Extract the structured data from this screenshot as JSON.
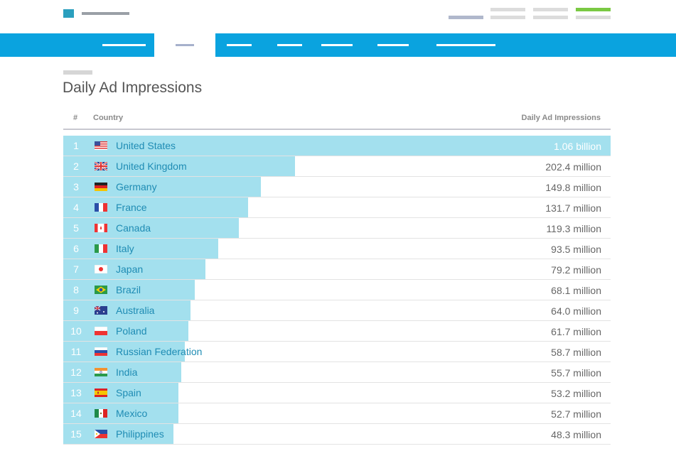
{
  "header": {
    "utility_colors": [
      "#b0b8cc",
      "#dcdcdc",
      "#dcdcdc",
      "#7ac943"
    ]
  },
  "nav": {
    "items_count": 8,
    "active_index": 1,
    "bar_color": "#0aa3df"
  },
  "page": {
    "title": "Daily Ad Impressions"
  },
  "table": {
    "columns": {
      "rank": "#",
      "country": "Country",
      "value": "Daily Ad Impressions"
    },
    "max_value": 1060,
    "rows": [
      {
        "rank": "1",
        "country": "United States",
        "value": "1.06 billion",
        "impressions_millions": 1060,
        "flag": "us-flag-icon"
      },
      {
        "rank": "2",
        "country": "United Kingdom",
        "value": "202.4 million",
        "impressions_millions": 202.4,
        "flag": "uk-flag-icon"
      },
      {
        "rank": "3",
        "country": "Germany",
        "value": "149.8 million",
        "impressions_millions": 149.8,
        "flag": "germany-flag-icon"
      },
      {
        "rank": "4",
        "country": "France",
        "value": "131.7 million",
        "impressions_millions": 131.7,
        "flag": "france-flag-icon"
      },
      {
        "rank": "5",
        "country": "Canada",
        "value": "119.3 million",
        "impressions_millions": 119.3,
        "flag": "canada-flag-icon"
      },
      {
        "rank": "6",
        "country": "Italy",
        "value": "93.5 million",
        "impressions_millions": 93.5,
        "flag": "italy-flag-icon"
      },
      {
        "rank": "7",
        "country": "Japan",
        "value": "79.2 million",
        "impressions_millions": 79.2,
        "flag": "japan-flag-icon"
      },
      {
        "rank": "8",
        "country": "Brazil",
        "value": "68.1 million",
        "impressions_millions": 68.1,
        "flag": "brazil-flag-icon"
      },
      {
        "rank": "9",
        "country": "Australia",
        "value": "64.0 million",
        "impressions_millions": 64.0,
        "flag": "australia-flag-icon"
      },
      {
        "rank": "10",
        "country": "Poland",
        "value": "61.7 million",
        "impressions_millions": 61.7,
        "flag": "poland-flag-icon"
      },
      {
        "rank": "11",
        "country": "Russian Federation",
        "value": "58.7 million",
        "impressions_millions": 58.7,
        "flag": "russia-flag-icon"
      },
      {
        "rank": "12",
        "country": "India",
        "value": "55.7 million",
        "impressions_millions": 55.7,
        "flag": "india-flag-icon"
      },
      {
        "rank": "13",
        "country": "Spain",
        "value": "53.2 million",
        "impressions_millions": 53.2,
        "flag": "spain-flag-icon"
      },
      {
        "rank": "14",
        "country": "Mexico",
        "value": "52.7 million",
        "impressions_millions": 52.7,
        "flag": "mexico-flag-icon"
      },
      {
        "rank": "15",
        "country": "Philippines",
        "value": "48.3 million",
        "impressions_millions": 48.3,
        "flag": "philippines-flag-icon"
      }
    ]
  },
  "colors": {
    "bar_fill": "#a3e0ee",
    "country_text": "#1f8cb4",
    "title_text": "#555555"
  }
}
